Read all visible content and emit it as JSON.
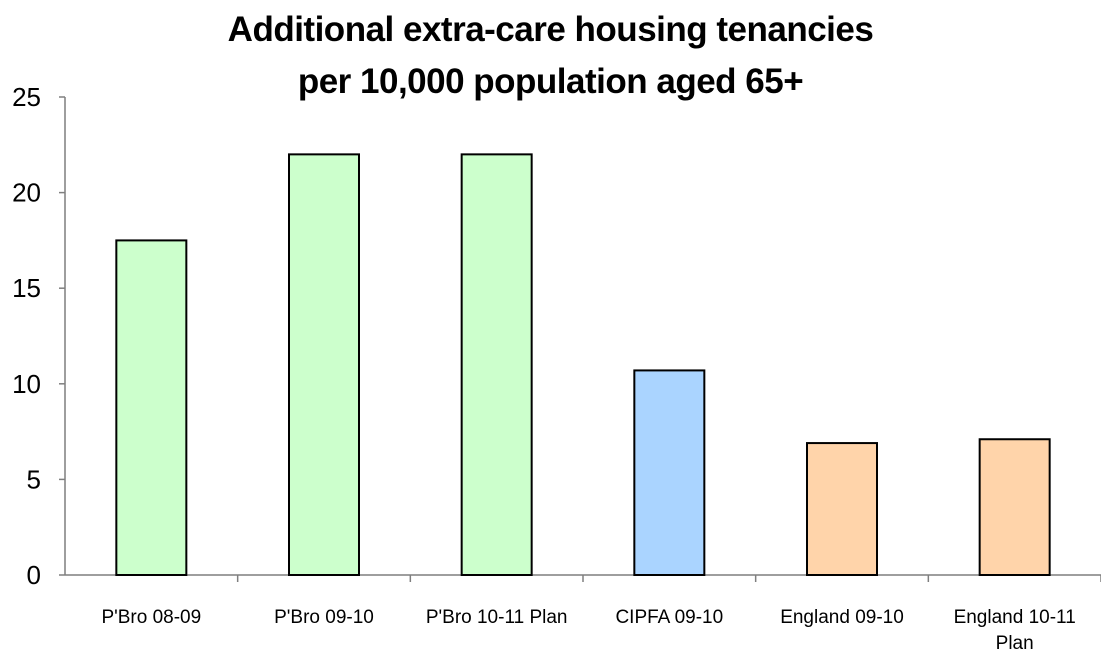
{
  "chart_data": {
    "type": "bar",
    "title": [
      "Additional extra-care housing tenancies",
      "per 10,000 population aged 65+"
    ],
    "xlabel": "",
    "ylabel": "",
    "ylim": [
      0,
      25
    ],
    "yticks": [
      0,
      5,
      10,
      15,
      20,
      25
    ],
    "grid": false,
    "legend": "none",
    "categories": [
      [
        "P'Bro 08-09"
      ],
      [
        "P'Bro 09-10"
      ],
      [
        "P'Bro 10-11 Plan"
      ],
      [
        "CIPFA 09-10"
      ],
      [
        "England 09-10"
      ],
      [
        "England 10-11",
        "Plan"
      ]
    ],
    "values": [
      17.5,
      22,
      22,
      10.7,
      6.9,
      7.1
    ],
    "bar_colors": [
      "#ccffcc",
      "#ccffcc",
      "#ccffcc",
      "#aad4ff",
      "#ffd4aa",
      "#ffd4aa"
    ]
  }
}
